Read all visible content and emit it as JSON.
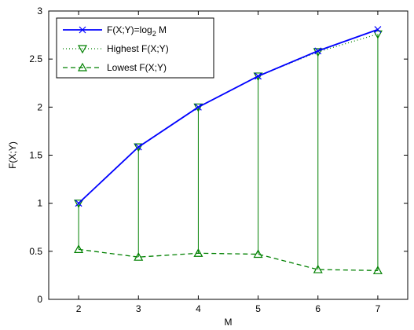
{
  "chart_data": {
    "type": "line",
    "xlabel": "M",
    "ylabel": "F(X;Y)",
    "xlim": [
      1.5,
      7.5
    ],
    "ylim": [
      0,
      3
    ],
    "xticks": [
      "2",
      "3",
      "4",
      "5",
      "6",
      "7"
    ],
    "yticks": [
      "0",
      "0.5",
      "1",
      "1.5",
      "2",
      "2.5",
      "3"
    ],
    "x": [
      2,
      3,
      4,
      5,
      6,
      7
    ],
    "series": [
      {
        "name": "F(X;Y)=log",
        "name_sub": "2",
        "name_suffix": " M",
        "values": [
          1.0,
          1.585,
          2.0,
          2.322,
          2.585,
          2.807
        ],
        "color": "#0000ff",
        "line": "solid",
        "marker": "x"
      },
      {
        "name": "Highest F(X;Y)",
        "values": [
          1.0,
          1.585,
          2.0,
          2.322,
          2.575,
          2.76
        ],
        "color": "#008000",
        "line": "dotted",
        "marker": "triangle-down"
      },
      {
        "name": "Lowest F(X;Y)",
        "values": [
          0.52,
          0.44,
          0.48,
          0.47,
          0.31,
          0.3
        ],
        "color": "#008000",
        "line": "dashed",
        "marker": "triangle-up"
      }
    ],
    "range_stems": true,
    "grid": false,
    "legend_position": "top-left"
  }
}
